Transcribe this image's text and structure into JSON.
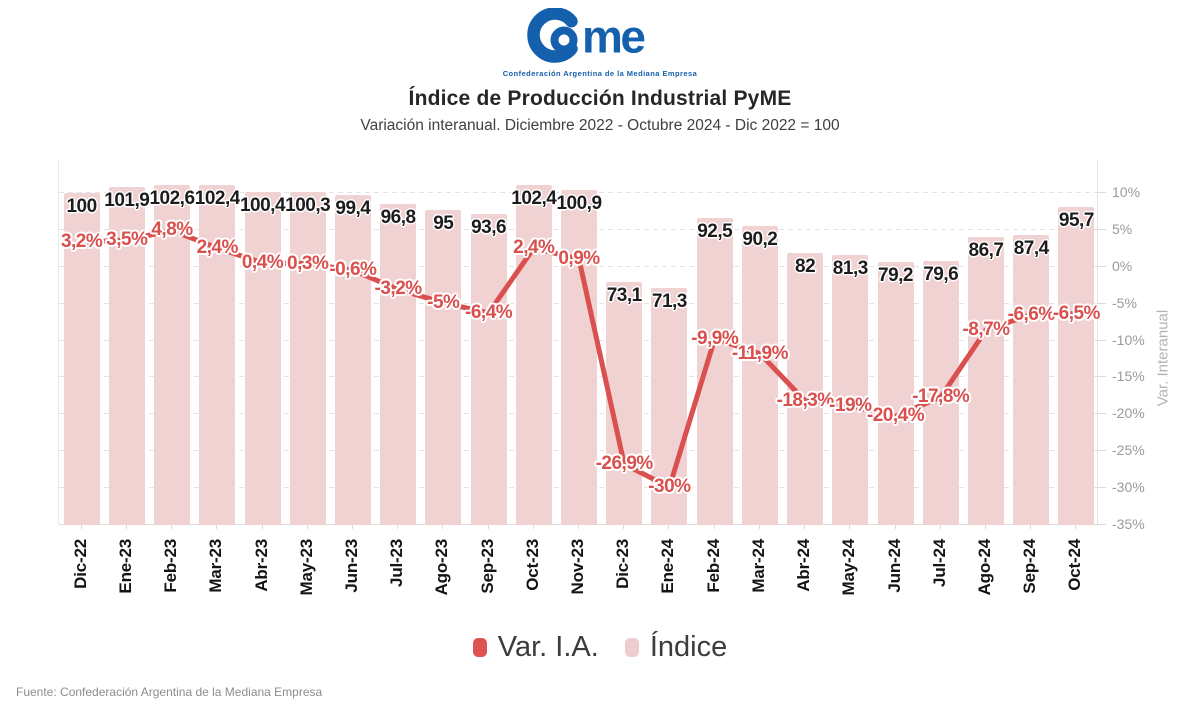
{
  "logo": {
    "wordmark": "Came",
    "me_text": "me",
    "tagline": "Confederación Argentina de la Mediana Empresa",
    "color": "#1460ad"
  },
  "header": {
    "title": "Índice de Producción Industrial PyME",
    "subtitle": "Variación interanual. Diciembre 2022 - Octubre 2024 - Dic 2022 = 100"
  },
  "legend": {
    "items": [
      {
        "label": "Var. I.A.",
        "color": "#e05252"
      },
      {
        "label": "Índice",
        "color": "#eecdce"
      }
    ]
  },
  "footer": {
    "source": "Fuente: Confederación Argentina de la Mediana Empresa"
  },
  "chart_data": {
    "type": "bar+line",
    "title": "Índice de Producción Industrial PyME",
    "subtitle": "Variación interanual. Diciembre 2022 - Octubre 2024 - Dic 2022 = 100",
    "categories": [
      "Dic-22",
      "Ene-23",
      "Feb-23",
      "Mar-23",
      "Abr-23",
      "May-23",
      "Jun-23",
      "Jul-23",
      "Ago-23",
      "Sep-23",
      "Oct-23",
      "Nov-23",
      "Dic-23",
      "Ene-24",
      "Feb-24",
      "Mar-24",
      "Abr-24",
      "May-24",
      "Jun-24",
      "Jul-24",
      "Ago-24",
      "Sep-24",
      "Oct-24"
    ],
    "series": [
      {
        "name": "Índice",
        "type": "bar",
        "color": "#f0d2d3",
        "axis": "left-hidden",
        "axis_max": 110,
        "values": [
          100,
          101.9,
          102.6,
          102.4,
          100.4,
          100.3,
          99.4,
          96.8,
          95,
          93.6,
          102.4,
          100.9,
          73.1,
          71.3,
          92.5,
          90.2,
          82,
          81.3,
          79.2,
          79.6,
          86.7,
          87.4,
          95.7
        ],
        "labels": [
          "100",
          "101,9",
          "102,6",
          "102,4",
          "100,4",
          "100,3",
          "99,4",
          "96,8",
          "95",
          "93,6",
          "102,4",
          "100,9",
          "73,1",
          "71,3",
          "92,5",
          "90,2",
          "82",
          "81,3",
          "79,2",
          "79,6",
          "86,7",
          "87,4",
          "95,7"
        ]
      },
      {
        "name": "Var. I.A.",
        "type": "line",
        "color": "#d9504e",
        "axis": "right",
        "values": [
          3.2,
          3.5,
          4.8,
          2.4,
          0.4,
          0.3,
          -0.6,
          -3.2,
          -5,
          -6.4,
          2.4,
          0.9,
          -26.9,
          -30,
          -9.9,
          -11.9,
          -18.3,
          -19,
          -20.4,
          -17.8,
          -8.7,
          -6.6,
          -6.5
        ],
        "labels": [
          "3,2%",
          "3,5%",
          "4,8%",
          "2,4%",
          "0,4%",
          "0,3%",
          "-0,6%",
          "-3,2%",
          "-5%",
          "-6,4%",
          "2,4%",
          "0,9%",
          "-26,9%",
          "-30%",
          "-9,9%",
          "-11,9%",
          "-18,3%",
          "-19%",
          "-20,4%",
          "-17,8%",
          "-8,7%",
          "-6,6%",
          "-6,5%"
        ],
        "labels_suffix": "%"
      }
    ],
    "right_axis": {
      "label": "Var. Interanual",
      "min": -35,
      "max": 10,
      "ticks": [
        "10%",
        "5%",
        "0%",
        "-5%",
        "-10%",
        "-15%",
        "-20%",
        "-25%",
        "-30%",
        "-35%"
      ],
      "tick_values": [
        10,
        5,
        0,
        -5,
        -10,
        -15,
        -20,
        -25,
        -30,
        -35
      ],
      "grid": "dashed-horizontal"
    },
    "x_axis": {
      "label": "",
      "tick_rotation": -90
    }
  }
}
